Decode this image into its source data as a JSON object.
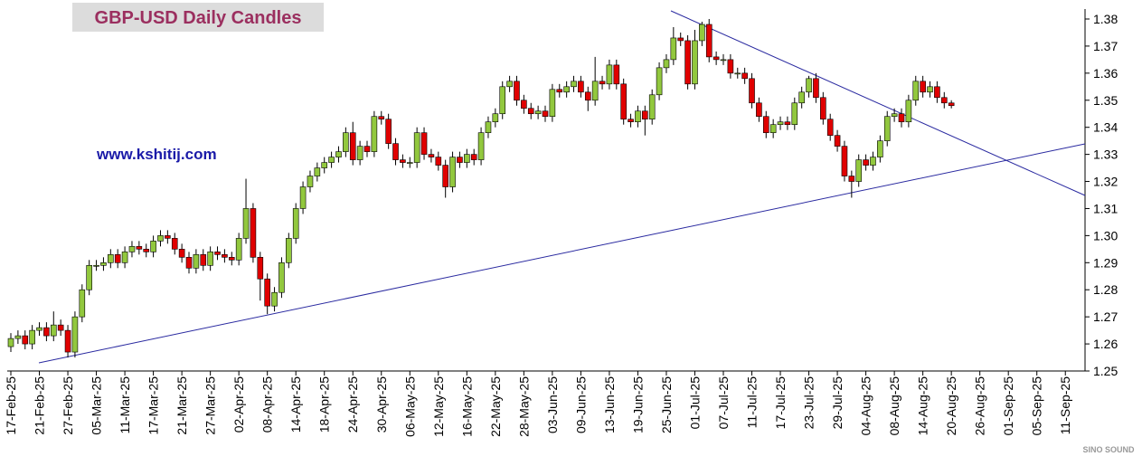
{
  "chart_data": {
    "type": "candlestick",
    "title": "GBP-USD Daily Candles",
    "annotation": "www.kshitij.com",
    "watermark": "SINO SOUND",
    "up_color": "#92c83e",
    "down_color": "#e00000",
    "ylim": [
      1.25,
      1.38
    ],
    "yticks": [
      1.25,
      1.26,
      1.27,
      1.28,
      1.29,
      {
        "value": 1.3,
        "label": "1.30"
      },
      1.31,
      1.32,
      1.33,
      1.34,
      1.35,
      1.36,
      1.37,
      1.38
    ],
    "categories": [
      "17-Feb-25",
      null,
      null,
      null,
      "21-Feb-25",
      null,
      null,
      null,
      "27-Feb-25",
      null,
      null,
      null,
      "05-Mar-25",
      null,
      null,
      null,
      "11-Mar-25",
      null,
      null,
      null,
      "17-Mar-25",
      null,
      null,
      null,
      "21-Mar-25",
      null,
      null,
      null,
      "27-Mar-25",
      null,
      null,
      null,
      "02-Apr-25",
      null,
      null,
      null,
      "08-Apr-25",
      null,
      null,
      null,
      "14-Apr-25",
      null,
      null,
      null,
      "18-Apr-25",
      null,
      null,
      null,
      "24-Apr-25",
      null,
      null,
      null,
      "30-Apr-25",
      null,
      null,
      null,
      "06-May-25",
      null,
      null,
      null,
      "12-May-25",
      null,
      null,
      null,
      "16-May-25",
      null,
      null,
      null,
      "22-May-25",
      null,
      null,
      null,
      "28-May-25",
      null,
      null,
      null,
      "03-Jun-25",
      null,
      null,
      null,
      "09-Jun-25",
      null,
      null,
      null,
      "13-Jun-25",
      null,
      null,
      null,
      "19-Jun-25",
      null,
      null,
      null,
      "25-Jun-25",
      null,
      null,
      null,
      "01-Jul-25",
      null,
      null,
      null,
      "07-Jul-25",
      null,
      null,
      null,
      "11-Jul-25",
      null,
      null,
      null,
      "17-Jul-25",
      null,
      null,
      null,
      "23-Jul-25",
      null,
      null,
      null,
      "29-Jul-25",
      null,
      null,
      null,
      "04-Aug-25",
      null,
      null,
      null,
      "08-Aug-25",
      null,
      null,
      null,
      "14-Aug-25",
      null,
      null,
      null,
      "20-Aug-25",
      null,
      null,
      null,
      "26-Aug-25",
      null,
      null,
      null,
      "01-Sep-25",
      null,
      null,
      null,
      "05-Sep-25",
      null,
      null,
      null,
      "11-Sep-25"
    ],
    "open": [
      1.259,
      1.262,
      1.263,
      1.26,
      1.265,
      1.266,
      1.263,
      1.267,
      1.265,
      1.257,
      1.27,
      1.28,
      1.289,
      1.289,
      1.29,
      1.293,
      1.29,
      1.294,
      1.296,
      1.295,
      1.294,
      1.298,
      1.3,
      1.299,
      1.295,
      1.292,
      1.288,
      1.293,
      1.289,
      1.294,
      1.293,
      1.292,
      1.291,
      1.299,
      1.31,
      1.292,
      1.284,
      1.274,
      1.279,
      1.29,
      1.299,
      1.31,
      1.318,
      1.322,
      1.325,
      1.327,
      1.329,
      1.331,
      1.338,
      1.328,
      1.333,
      1.331,
      1.344,
      1.343,
      1.334,
      1.328,
      1.327,
      1.327,
      1.338,
      1.33,
      1.329,
      1.326,
      1.318,
      1.329,
      1.327,
      1.33,
      1.328,
      1.338,
      1.342,
      1.345,
      1.355,
      1.357,
      1.35,
      1.347,
      1.345,
      1.346,
      1.344,
      1.354,
      1.353,
      1.355,
      1.357,
      1.353,
      1.35,
      1.357,
      1.356,
      1.363,
      1.356,
      1.343,
      1.342,
      1.346,
      1.343,
      1.352,
      1.362,
      1.365,
      1.373,
      1.372,
      1.356,
      1.372,
      1.378,
      1.366,
      1.365,
      1.365,
      1.36,
      1.36,
      1.358,
      1.349,
      1.344,
      1.338,
      1.341,
      1.342,
      1.341,
      1.349,
      1.353,
      1.358,
      1.351,
      1.343,
      1.337,
      1.333,
      1.322,
      1.32,
      1.328,
      1.326,
      1.329,
      1.335,
      1.344,
      1.345,
      1.342,
      1.35,
      1.357,
      1.353,
      1.355,
      1.351,
      1.349,
      null,
      null,
      null,
      null,
      null,
      null,
      null,
      null,
      null,
      null,
      null,
      null,
      null,
      null,
      null,
      null
    ],
    "high": [
      1.264,
      1.265,
      1.265,
      1.267,
      1.268,
      1.268,
      1.272,
      1.269,
      1.267,
      1.272,
      1.282,
      1.291,
      1.291,
      1.292,
      1.295,
      1.295,
      1.296,
      1.298,
      1.298,
      1.297,
      1.3,
      1.302,
      1.302,
      1.301,
      1.297,
      1.294,
      1.295,
      1.295,
      1.296,
      1.296,
      1.295,
      1.294,
      1.301,
      1.321,
      1.312,
      1.294,
      1.286,
      1.281,
      1.292,
      1.301,
      1.312,
      1.32,
      1.324,
      1.327,
      1.329,
      1.331,
      1.333,
      1.34,
      1.342,
      1.335,
      1.335,
      1.346,
      1.346,
      1.345,
      1.336,
      1.33,
      1.329,
      1.34,
      1.34,
      1.332,
      1.331,
      1.328,
      1.331,
      1.331,
      1.332,
      1.332,
      1.34,
      1.344,
      1.347,
      1.357,
      1.359,
      1.359,
      1.352,
      1.349,
      1.348,
      1.348,
      1.356,
      1.356,
      1.357,
      1.359,
      1.359,
      1.355,
      1.366,
      1.359,
      1.365,
      1.365,
      1.358,
      1.345,
      1.348,
      1.348,
      1.354,
      1.364,
      1.367,
      1.377,
      1.375,
      1.374,
      1.376,
      1.379,
      1.38,
      1.368,
      1.367,
      1.367,
      1.362,
      1.362,
      1.36,
      1.351,
      1.346,
      1.343,
      1.344,
      1.344,
      1.351,
      1.355,
      1.359,
      1.36,
      1.353,
      1.345,
      1.339,
      1.335,
      1.324,
      1.33,
      1.33,
      1.331,
      1.337,
      1.346,
      1.347,
      1.347,
      1.352,
      1.359,
      1.359,
      1.357,
      1.357,
      1.353,
      1.35,
      null,
      null,
      null,
      null,
      null,
      null,
      null,
      null,
      null,
      null,
      null,
      null,
      null,
      null,
      null,
      null
    ],
    "low": [
      1.257,
      1.26,
      1.258,
      1.258,
      1.263,
      1.261,
      1.261,
      1.263,
      1.255,
      1.255,
      1.268,
      1.278,
      1.287,
      1.287,
      1.288,
      1.288,
      1.288,
      1.292,
      1.293,
      1.292,
      1.292,
      1.296,
      1.297,
      1.293,
      1.29,
      1.286,
      1.286,
      1.287,
      1.287,
      1.291,
      1.29,
      1.289,
      1.289,
      1.297,
      1.29,
      1.276,
      1.271,
      1.272,
      1.277,
      1.288,
      1.297,
      1.308,
      1.316,
      1.32,
      1.323,
      1.325,
      1.327,
      1.329,
      1.326,
      1.326,
      1.329,
      1.329,
      1.341,
      1.332,
      1.326,
      1.325,
      1.325,
      1.325,
      1.328,
      1.327,
      1.324,
      1.314,
      1.316,
      1.325,
      1.325,
      1.326,
      1.326,
      1.336,
      1.34,
      1.343,
      1.353,
      1.348,
      1.345,
      1.343,
      1.343,
      1.342,
      1.342,
      1.351,
      1.351,
      1.353,
      1.351,
      1.346,
      1.348,
      1.354,
      1.354,
      1.354,
      1.341,
      1.34,
      1.34,
      1.337,
      1.341,
      1.35,
      1.36,
      1.363,
      1.37,
      1.354,
      1.354,
      1.37,
      1.364,
      1.363,
      1.363,
      1.358,
      1.358,
      1.356,
      1.347,
      1.342,
      1.336,
      1.336,
      1.339,
      1.339,
      1.339,
      1.347,
      1.351,
      1.349,
      1.341,
      1.335,
      1.331,
      1.32,
      1.314,
      1.318,
      1.324,
      1.324,
      1.327,
      1.333,
      1.342,
      1.34,
      1.34,
      1.348,
      1.351,
      1.351,
      1.349,
      1.347,
      1.347,
      null,
      null,
      null,
      null,
      null,
      null,
      null,
      null,
      null,
      null,
      null,
      null,
      null,
      null,
      null,
      null
    ],
    "close": [
      1.262,
      1.263,
      1.26,
      1.265,
      1.266,
      1.263,
      1.267,
      1.265,
      1.257,
      1.27,
      1.28,
      1.289,
      1.289,
      1.29,
      1.293,
      1.29,
      1.294,
      1.296,
      1.295,
      1.294,
      1.298,
      1.3,
      1.299,
      1.295,
      1.292,
      1.288,
      1.293,
      1.289,
      1.294,
      1.293,
      1.292,
      1.291,
      1.299,
      1.31,
      1.292,
      1.284,
      1.274,
      1.279,
      1.29,
      1.299,
      1.31,
      1.318,
      1.322,
      1.325,
      1.327,
      1.329,
      1.331,
      1.338,
      1.328,
      1.333,
      1.331,
      1.344,
      1.343,
      1.334,
      1.328,
      1.327,
      1.327,
      1.338,
      1.33,
      1.329,
      1.326,
      1.318,
      1.329,
      1.327,
      1.33,
      1.328,
      1.338,
      1.342,
      1.345,
      1.355,
      1.357,
      1.35,
      1.347,
      1.345,
      1.346,
      1.344,
      1.354,
      1.353,
      1.355,
      1.357,
      1.353,
      1.35,
      1.357,
      1.356,
      1.363,
      1.356,
      1.343,
      1.342,
      1.346,
      1.343,
      1.352,
      1.362,
      1.365,
      1.373,
      1.372,
      1.356,
      1.372,
      1.378,
      1.366,
      1.365,
      1.365,
      1.36,
      1.36,
      1.358,
      1.349,
      1.344,
      1.338,
      1.341,
      1.342,
      1.341,
      1.349,
      1.353,
      1.358,
      1.351,
      1.343,
      1.337,
      1.333,
      1.322,
      1.32,
      1.328,
      1.326,
      1.329,
      1.335,
      1.344,
      1.345,
      1.342,
      1.35,
      1.357,
      1.353,
      1.355,
      1.351,
      1.349,
      1.348,
      null,
      null,
      null,
      null,
      null,
      null,
      null,
      null,
      null,
      null,
      null,
      null,
      null,
      null,
      null,
      null
    ]
  }
}
